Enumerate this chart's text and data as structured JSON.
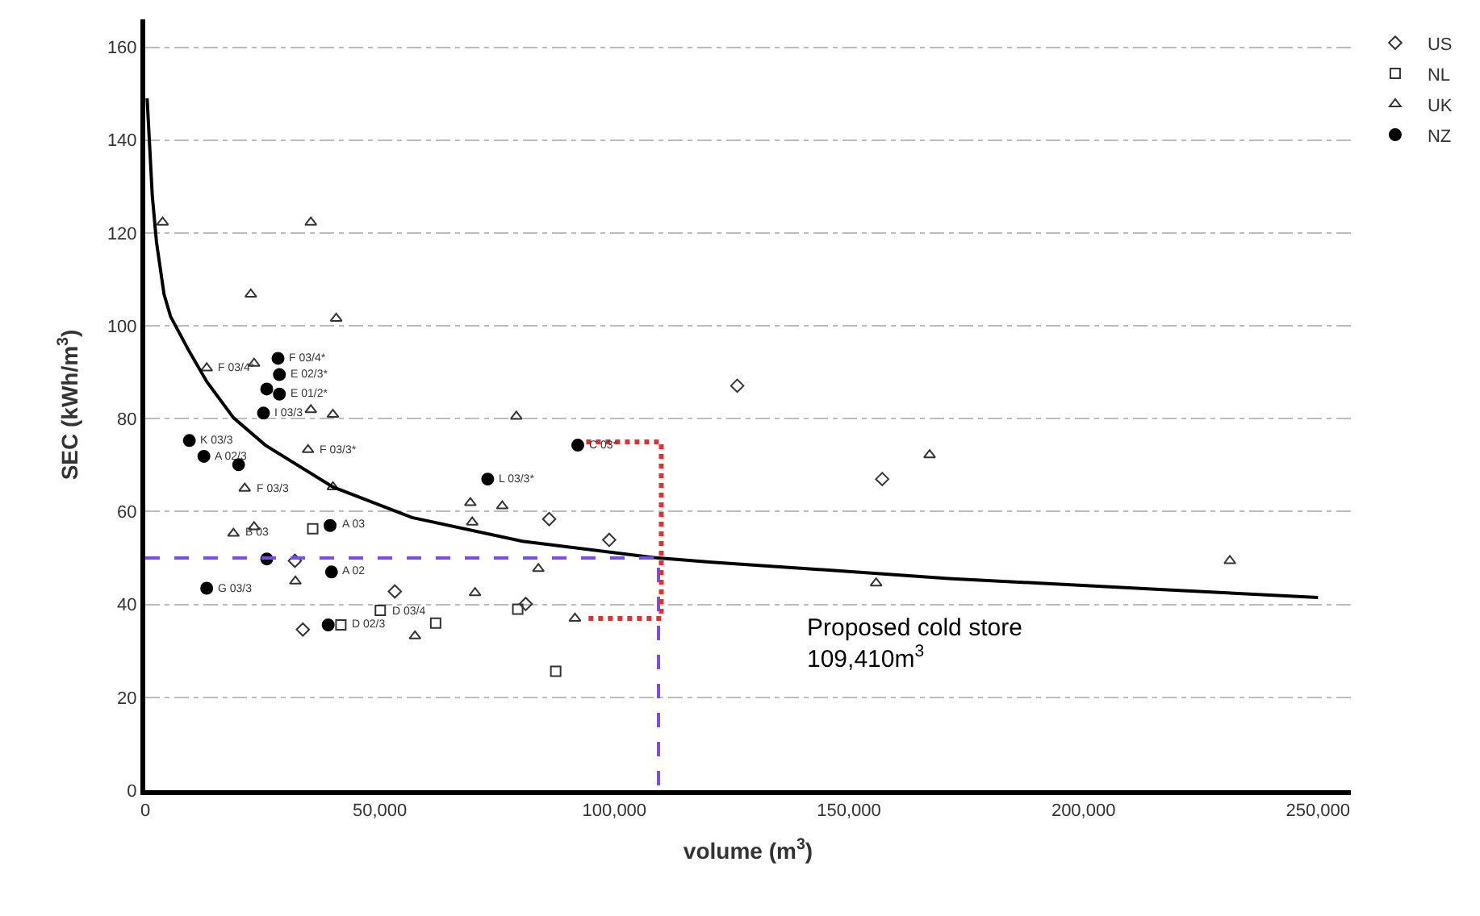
{
  "chart_data": {
    "type": "scatter",
    "xlabel": "volume (m$^{3}$)",
    "ylabel": "SEC (kWh/m$^{3}$)",
    "xlim": [
      0,
      257000
    ],
    "ylim": [
      0,
      166
    ],
    "xticks": [
      {
        "value": 0,
        "label": "0"
      },
      {
        "value": 50000,
        "label": "50,000"
      },
      {
        "value": 100000,
        "label": "100,000"
      },
      {
        "value": 150000,
        "label": "150,000"
      },
      {
        "value": 200000,
        "label": "200,000"
      },
      {
        "value": 250000,
        "label": "250,000"
      }
    ],
    "yticks": [
      0,
      20,
      40,
      60,
      80,
      100,
      120,
      140,
      160
    ],
    "grid": "y",
    "legend": "top right",
    "series": [
      {
        "name": "US",
        "color": "#333333",
        "marker": "diamond",
        "x": [
          31900,
          53200,
          33600,
          86100,
          98900,
          81100,
          126200,
          157100
        ],
        "values": [
          49.4,
          42.8,
          34.6,
          58.4,
          53.9,
          40.1,
          87.1,
          67.0
        ]
      },
      {
        "name": "NL",
        "color": "#333333",
        "marker": "square",
        "x": [
          35700,
          41700,
          61900,
          87500,
          79400,
          50100
        ],
        "values": [
          56.3,
          35.6,
          36.0,
          25.6,
          39.0,
          38.7
        ]
      },
      {
        "name": "UK",
        "color": "#333333",
        "marker": "triangle",
        "x": [
          22500,
          40700,
          13100,
          23200,
          35300,
          40000,
          34700,
          21200,
          40000,
          23200,
          32000,
          18800,
          3700,
          35300,
          79100,
          69300,
          69700,
          76100,
          83800,
          70300,
          57500,
          91600,
          155800,
          167200,
          231200
        ],
        "values": [
          106.8,
          101.6,
          90.9,
          91.9,
          81.9,
          80.9,
          73.3,
          65.0,
          65.3,
          56.7,
          45.0,
          55.3,
          122.3,
          122.3,
          80.5,
          61.9,
          57.7,
          61.2,
          47.7,
          42.5,
          33.2,
          37.0,
          44.6,
          72.2,
          49.4
        ]
      },
      {
        "name": "NZ",
        "color": "#000000",
        "marker": "circle",
        "x": [
          28300,
          28600,
          25900,
          28600,
          25200,
          9400,
          12500,
          19900,
          39400,
          25900,
          39700,
          13100,
          39000,
          92200,
          73000
        ],
        "values": [
          93.0,
          89.5,
          86.4,
          85.3,
          81.2,
          75.3,
          71.9,
          70.1,
          57.0,
          49.8,
          47.0,
          43.5,
          35.6,
          74.3,
          67.0
        ]
      },
      {
        "type": "line",
        "color": "#000000",
        "line_style": "solid",
        "marker": "none",
        "x": [
          400,
          1500,
          2400,
          4000,
          5400,
          9100,
          13100,
          18800,
          25600,
          40000,
          56900,
          80400,
          108400,
          120800,
          134000,
          171300,
          217000,
          250000
        ],
        "values": [
          149,
          128,
          118,
          106.8,
          102,
          95,
          88,
          80.2,
          74.3,
          65.3,
          58.7,
          53.6,
          50.1,
          49.1,
          48.2,
          45.6,
          43.2,
          41.5
        ]
      },
      {
        "type": "line",
        "color": "#7b4ee0",
        "line_style": "dashed",
        "marker": "none",
        "x": [
          0,
          109410,
          109410
        ],
        "values": [
          50,
          50,
          0
        ]
      },
      {
        "type": "line",
        "color": "#e03030",
        "line_style": "dotted",
        "marker": "none",
        "x": [
          94000,
          110000,
          110000,
          94000
        ],
        "values": [
          75,
          75,
          37,
          37
        ]
      }
    ],
    "annotations": [
      {
        "text": "F 03/4*",
        "x": 28300,
        "y": 93.0
      },
      {
        "text": "E 02/3*",
        "x": 28600,
        "y": 89.5
      },
      {
        "text": "E 01/2*",
        "x": 28600,
        "y": 85.3
      },
      {
        "text": "F 03/4*",
        "x": 13100,
        "y": 90.9
      },
      {
        "text": "I 03/3",
        "x": 25200,
        "y": 81.2
      },
      {
        "text": "K 03/3",
        "x": 9400,
        "y": 75.3
      },
      {
        "text": "F 03/3*",
        "x": 34700,
        "y": 73.3
      },
      {
        "text": "F 03/3",
        "x": 21200,
        "y": 65.0
      },
      {
        "text": "A 02/3",
        "x": 12500,
        "y": 71.9
      },
      {
        "text": "A 03",
        "x": 39400,
        "y": 57.0
      },
      {
        "text": "B 03",
        "x": 18800,
        "y": 55.3
      },
      {
        "text": "G 03/3",
        "x": 13100,
        "y": 43.5
      },
      {
        "text": "A 02",
        "x": 39700,
        "y": 47.0
      },
      {
        "text": "D 03/4",
        "x": 50100,
        "y": 38.7
      },
      {
        "text": "D 02/3",
        "x": 41700,
        "y": 35.6
      },
      {
        "text": "C 03*",
        "x": 92200,
        "y": 74.3
      },
      {
        "text": "L 03/3*",
        "x": 73000,
        "y": 67.0
      },
      "Proposed cold store\n109,410m$^{3}$"
    ]
  }
}
